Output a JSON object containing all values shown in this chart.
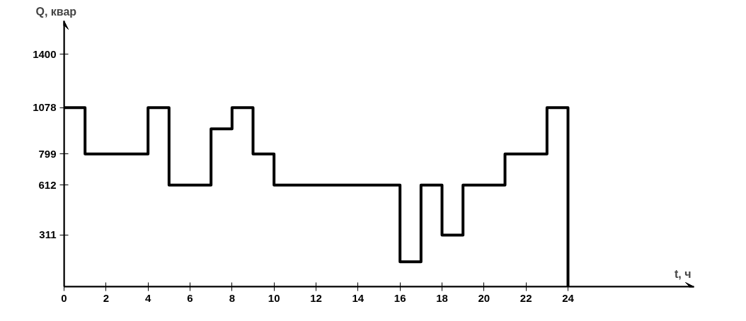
{
  "chart_data": {
    "type": "step",
    "xlabel": "t, ч",
    "ylabel": "Q, квар",
    "x": [
      0,
      1,
      4,
      5,
      7,
      8,
      9,
      10,
      16,
      17,
      18,
      19,
      21,
      23,
      24
    ],
    "series": [
      {
        "color": "#000000",
        "values": [
          1078,
          799,
          1078,
          612,
          950,
          1078,
          799,
          612,
          150,
          612,
          311,
          612,
          799,
          1078,
          0
        ]
      }
    ],
    "xlim": [
      0,
      30
    ],
    "ylim": [
      0,
      1600
    ],
    "xticks": [
      0,
      2,
      4,
      6,
      8,
      10,
      12,
      14,
      16,
      18,
      20,
      22,
      24
    ],
    "yticks": [
      311,
      612,
      799,
      1078,
      1400
    ],
    "grid": false,
    "marker": "none",
    "line_style": "solid"
  }
}
